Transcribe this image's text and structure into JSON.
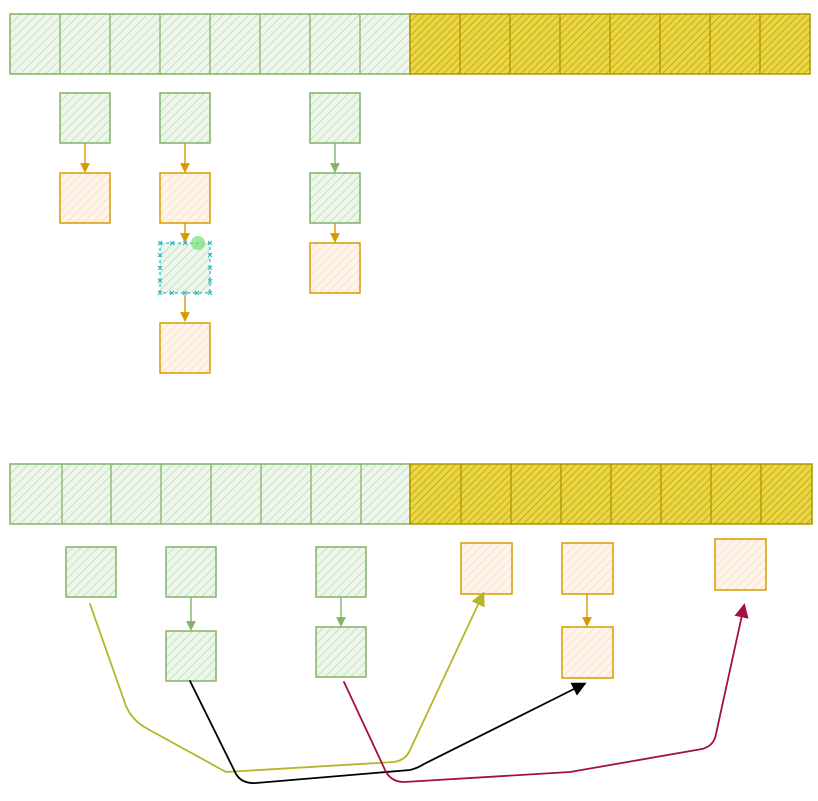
{
  "colors": {
    "green_fill": "#d5e8d4",
    "green_stroke": "#82b366",
    "yellow_fill": "#e3c800",
    "yellow_stroke": "#b09500",
    "orange_fill": "#ffe6cc",
    "orange_stroke": "#d79b00",
    "selection": "#29b6c6",
    "selection_handle": "#7be07b",
    "arrow_olive": "#b5b52a",
    "arrow_black": "#000000",
    "arrow_crimson": "#a50f47"
  },
  "diagram": {
    "top_array": {
      "green_cells": 8,
      "yellow_cells": 8
    },
    "bottom_array": {
      "green_cells": 8,
      "yellow_cells": 8
    },
    "selected_node": "top-chain-2-node-3"
  }
}
